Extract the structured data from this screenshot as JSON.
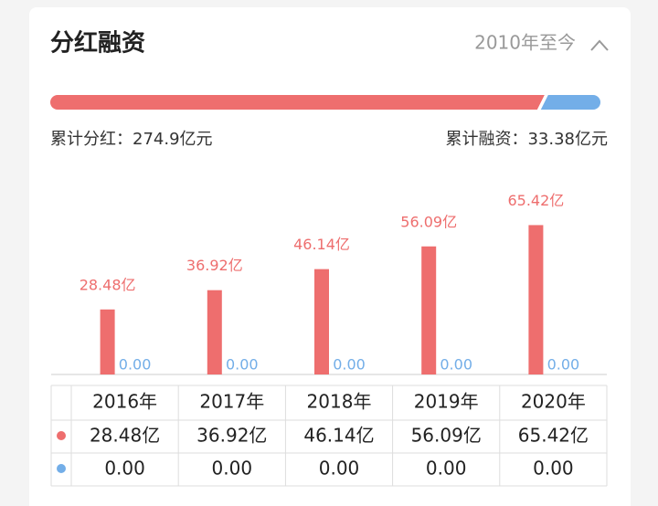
{
  "header": {
    "title": "分红融资",
    "period": "2010年至今"
  },
  "summary": {
    "values": [
      274.9,
      33.38
    ],
    "value_labels": [
      "累计分红：274.9亿元",
      "累计融资：33.38亿元"
    ],
    "colors": [
      "#ee6e6e",
      "#73aee8"
    ]
  },
  "chart_data": {
    "type": "bar",
    "categories": [
      "2016年",
      "2017年",
      "2018年",
      "2019年",
      "2020年"
    ],
    "series": [
      {
        "color": "#ee6e6e",
        "values": [
          28.48,
          36.92,
          46.14,
          56.09,
          65.42
        ],
        "value_labels": [
          "28.48亿",
          "36.92亿",
          "46.14亿",
          "56.09亿",
          "65.42亿"
        ]
      },
      {
        "color": "#73aee8",
        "values": [
          0,
          0,
          0,
          0,
          0
        ],
        "value_labels": [
          "0.00",
          "0.00",
          "0.00",
          "0.00",
          "0.00"
        ]
      }
    ],
    "ylim": [
      0,
      80
    ]
  }
}
